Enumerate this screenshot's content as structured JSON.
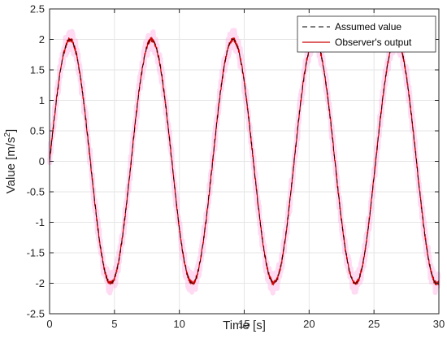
{
  "chart_data": {
    "type": "line",
    "title": "",
    "xlabel": "Time [s]",
    "ylabel": "Value [m/s",
    "ylabel_sup": "2",
    "ylabel_tail": "]",
    "xlim": [
      0,
      30
    ],
    "ylim": [
      -2.5,
      2.5
    ],
    "xticks": [
      0,
      5,
      10,
      15,
      20,
      25,
      30
    ],
    "xtick_labels": [
      "0",
      "5",
      "10",
      "15",
      "20",
      "25",
      "30"
    ],
    "yticks": [
      -2.5,
      -2,
      -1.5,
      -1,
      -0.5,
      0,
      0.5,
      1,
      1.5,
      2,
      2.5
    ],
    "ytick_labels": [
      "-2.5",
      "-2",
      "-1.5",
      "-1",
      "-0.5",
      "0",
      "0.5",
      "1",
      "1.5",
      "2",
      "2.5"
    ],
    "grid": true,
    "legend_position": "top-right",
    "series": [
      {
        "name": "Assumed value",
        "style": "dashed",
        "color": "#000000",
        "function": "2*sin(x)",
        "amplitude": 2,
        "period_s": 6.283
      },
      {
        "name": "Observer's output",
        "style": "solid",
        "color": "#cc0000",
        "function": "2*sin(x) + noise",
        "amplitude": 2,
        "period_s": 6.283,
        "noise_amplitude": 0.04
      }
    ],
    "noise_band_color": "#ff99dd"
  }
}
